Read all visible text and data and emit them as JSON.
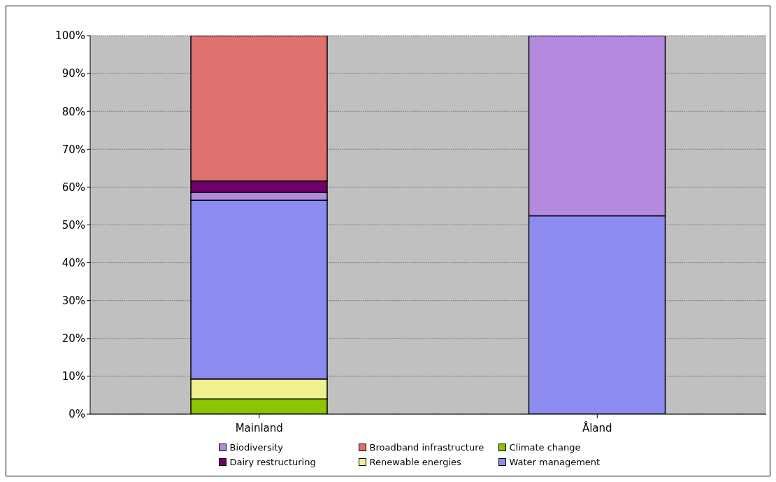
{
  "chart_data": {
    "type": "bar",
    "stacked": true,
    "categories": [
      "Mainland",
      "Åland"
    ],
    "series": [
      {
        "name": "Climate change",
        "color": "#8cc400",
        "values": [
          4,
          0
        ]
      },
      {
        "name": "Renewable energies",
        "color": "#f0f090",
        "values": [
          5.3,
          0
        ]
      },
      {
        "name": "Water management",
        "color": "#8c8cf0",
        "values": [
          47.2,
          52.4
        ]
      },
      {
        "name": "Biodiversity",
        "color": "#b48ae0",
        "values": [
          2.1,
          47.6
        ]
      },
      {
        "name": "Dairy restructuring",
        "color": "#6e006e",
        "values": [
          3,
          0
        ]
      },
      {
        "name": "Broadband infrastructure",
        "color": "#e07070",
        "values": [
          38.4,
          0
        ]
      }
    ],
    "ylim": [
      0,
      100
    ],
    "yticks": [
      {
        "value": 0,
        "label": "0%"
      },
      {
        "value": 10,
        "label": "10%"
      },
      {
        "value": 20,
        "label": "20%"
      },
      {
        "value": 30,
        "label": "30%"
      },
      {
        "value": 40,
        "label": "40%"
      },
      {
        "value": 50,
        "label": "50%"
      },
      {
        "value": 60,
        "label": "60%"
      },
      {
        "value": 70,
        "label": "70%"
      },
      {
        "value": 80,
        "label": "80%"
      },
      {
        "value": 90,
        "label": "90%"
      },
      {
        "value": 100,
        "label": "100%"
      }
    ],
    "grid": "y",
    "legend": "bottom"
  }
}
